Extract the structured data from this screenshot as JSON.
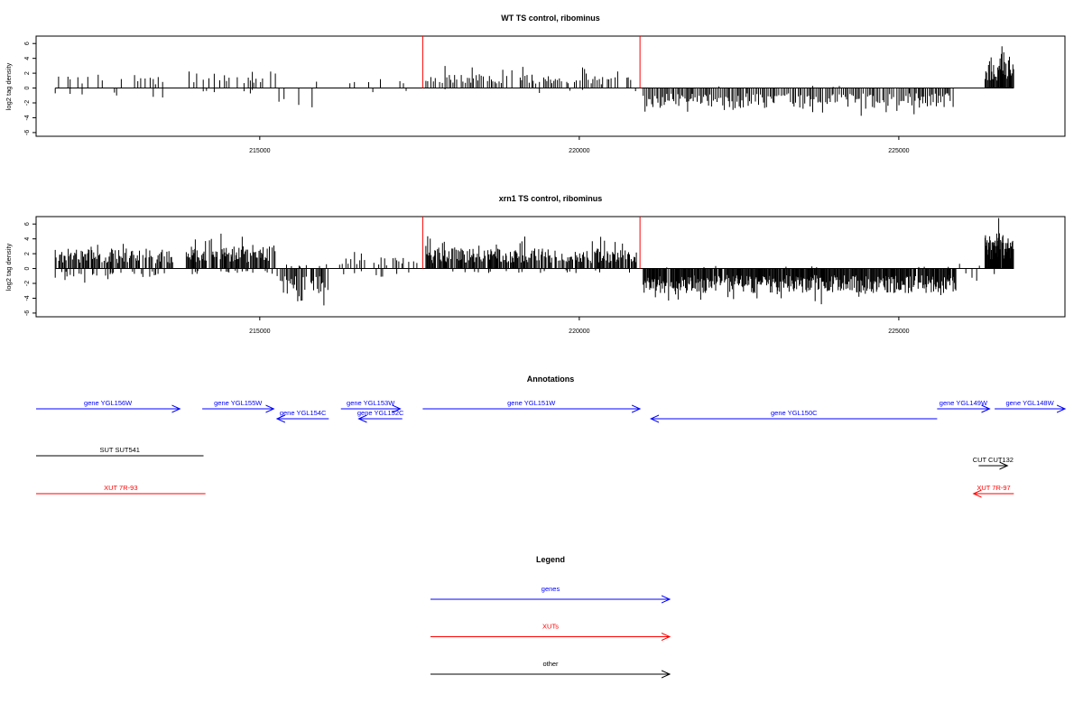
{
  "colors": {
    "axis": "#000000",
    "bars": "#000000",
    "marker": "#ff0000",
    "genes": "#0000ff",
    "xuts": "#ff0000",
    "other": "#000000"
  },
  "chart_data": [
    {
      "type": "bar",
      "title": "WT TS control, ribominus",
      "ylabel": "log2 tag density",
      "xlim": [
        211500,
        227600
      ],
      "ylim": [
        -6.5,
        7
      ],
      "yticks": [
        -6,
        -4,
        -2,
        0,
        2,
        4,
        6
      ],
      "ytick_labels": [
        "-6",
        "-4",
        "-2",
        "0",
        "2",
        "4",
        "6"
      ],
      "xticks": [
        215000,
        220000,
        225000
      ],
      "xtick_labels": [
        "215000",
        "220000",
        "225000"
      ],
      "markers": [
        217550,
        220950
      ],
      "marker_top": 7,
      "grid": false,
      "segments": [
        {
          "start": 211800,
          "end": 213600,
          "step": 50,
          "pos_level": 1.2,
          "pos_var": 1.4,
          "neg_level": 0.9,
          "neg_var": 1.2,
          "pos_prob": 0.45,
          "neg_prob": 0.3
        },
        {
          "start": 213850,
          "end": 215250,
          "step": 38,
          "pos_level": 1.5,
          "pos_var": 1.5,
          "neg_level": 0.6,
          "neg_var": 0.5,
          "pos_prob": 0.65,
          "neg_prob": 0.12
        },
        {
          "start": 215300,
          "end": 215900,
          "step": 60,
          "pos_level": 0.6,
          "pos_var": 0.8,
          "neg_level": 1.8,
          "neg_var": 2.2,
          "pos_prob": 0.25,
          "neg_prob": 0.55
        },
        {
          "start": 216300,
          "end": 217500,
          "step": 55,
          "pos_level": 0.8,
          "pos_var": 1.2,
          "neg_level": 0.6,
          "neg_var": 0.8,
          "pos_prob": 0.35,
          "neg_prob": 0.15
        },
        {
          "start": 217600,
          "end": 220900,
          "step": 32,
          "pos_level": 1.2,
          "pos_var": 1.6,
          "neg_level": 0.4,
          "neg_var": 0.3,
          "pos_prob": 0.7,
          "neg_prob": 0.05
        },
        {
          "start": 221000,
          "end": 225900,
          "step": 24,
          "pos_level": 0.2,
          "pos_var": 0.2,
          "neg_level": 1.8,
          "neg_var": 2.0,
          "pos_prob": 0.02,
          "neg_prob": 0.9
        },
        {
          "start": 226000,
          "end": 226300,
          "step": 60,
          "pos_level": 0.4,
          "pos_var": 0.3,
          "neg_level": 0.8,
          "neg_var": 0.8,
          "pos_prob": 0.2,
          "neg_prob": 0.4
        },
        {
          "start": 226350,
          "end": 226800,
          "step": 12,
          "pos_level": 2.5,
          "pos_var": 3.0,
          "neg_level": 0.4,
          "neg_var": 0.4,
          "pos_prob": 0.95,
          "neg_prob": 0.05
        }
      ]
    },
    {
      "type": "bar",
      "title": "xrn1 TS control, ribominus",
      "ylabel": "log2 tag density",
      "xlim": [
        211500,
        227600
      ],
      "ylim": [
        -6.5,
        7
      ],
      "yticks": [
        -6,
        -4,
        -2,
        0,
        2,
        4,
        6
      ],
      "ytick_labels": [
        "-6",
        "-4",
        "-2",
        "0",
        "2",
        "4",
        "6"
      ],
      "xticks": [
        215000,
        220000,
        225000
      ],
      "xtick_labels": [
        "215000",
        "220000",
        "225000"
      ],
      "markers": [
        217550,
        220950
      ],
      "marker_top": 7,
      "grid": false,
      "segments": [
        {
          "start": 211800,
          "end": 213650,
          "step": 16,
          "pos_level": 1.8,
          "pos_var": 2.2,
          "neg_level": 1.0,
          "neg_var": 1.2,
          "pos_prob": 0.85,
          "neg_prob": 0.35
        },
        {
          "start": 213850,
          "end": 215250,
          "step": 14,
          "pos_level": 2.0,
          "pos_var": 2.5,
          "neg_level": 0.6,
          "neg_var": 0.8,
          "pos_prob": 0.85,
          "neg_prob": 0.2
        },
        {
          "start": 215250,
          "end": 216100,
          "step": 18,
          "pos_level": 0.5,
          "pos_var": 0.6,
          "neg_level": 2.5,
          "neg_var": 2.6,
          "pos_prob": 0.15,
          "neg_prob": 0.85
        },
        {
          "start": 216250,
          "end": 217500,
          "step": 30,
          "pos_level": 1.0,
          "pos_var": 1.2,
          "neg_level": 0.8,
          "neg_var": 1.2,
          "pos_prob": 0.55,
          "neg_prob": 0.25
        },
        {
          "start": 217600,
          "end": 220900,
          "step": 14,
          "pos_level": 1.8,
          "pos_var": 2.2,
          "neg_level": 0.4,
          "neg_var": 0.3,
          "pos_prob": 0.85,
          "neg_prob": 0.08
        },
        {
          "start": 221000,
          "end": 225900,
          "step": 12,
          "pos_level": 0.2,
          "pos_var": 0.2,
          "neg_level": 2.2,
          "neg_var": 2.4,
          "pos_prob": 0.02,
          "neg_prob": 0.95
        },
        {
          "start": 225950,
          "end": 226300,
          "step": 40,
          "pos_level": 0.6,
          "pos_var": 0.8,
          "neg_level": 1.2,
          "neg_var": 1.0,
          "pos_prob": 0.3,
          "neg_prob": 0.5
        },
        {
          "start": 226350,
          "end": 226800,
          "step": 8,
          "pos_level": 3.0,
          "pos_var": 3.2,
          "neg_level": 0.4,
          "neg_var": 0.3,
          "pos_prob": 0.97,
          "neg_prob": 0.05
        }
      ]
    }
  ],
  "annotations": {
    "title": "Annotations",
    "features": [
      {
        "label": "gene YGL156W",
        "kind": "genes",
        "start": 211500,
        "end": 213750,
        "strand": "+",
        "row": 0
      },
      {
        "label": "gene YGL155W",
        "kind": "genes",
        "start": 214100,
        "end": 215220,
        "strand": "+",
        "row": 0
      },
      {
        "label": "gene YGL154C",
        "kind": "genes",
        "start": 215270,
        "end": 216080,
        "strand": "-",
        "row": 1
      },
      {
        "label": "gene YGL153W",
        "kind": "genes",
        "start": 216270,
        "end": 217200,
        "strand": "+",
        "row": 0
      },
      {
        "label": "gene YGL152C",
        "kind": "genes",
        "start": 216550,
        "end": 217230,
        "strand": "-",
        "row": 1
      },
      {
        "label": "gene YGL151W",
        "kind": "genes",
        "start": 217550,
        "end": 220950,
        "strand": "+",
        "row": 0
      },
      {
        "label": "gene YGL150C",
        "kind": "genes",
        "start": 221120,
        "end": 225600,
        "strand": "-",
        "row": 1
      },
      {
        "label": "gene YGL149W",
        "kind": "genes",
        "start": 225600,
        "end": 226420,
        "strand": "+",
        "row": 0
      },
      {
        "label": "gene YGL148W",
        "kind": "genes",
        "start": 226500,
        "end": 227600,
        "strand": "+",
        "row": 0
      },
      {
        "label": "SUT SUT541",
        "kind": "other",
        "start": 211500,
        "end": 214120,
        "strand": "",
        "row": 2
      },
      {
        "label": "CUT CUT132",
        "kind": "other",
        "start": 226250,
        "end": 226700,
        "strand": "+",
        "row": 3
      },
      {
        "label": "XUT 7R-93",
        "kind": "xuts",
        "start": 211500,
        "end": 214150,
        "strand": "",
        "row": 4
      },
      {
        "label": "XUT 7R-97",
        "kind": "xuts",
        "start": 226170,
        "end": 226800,
        "strand": "-",
        "row": 4
      }
    ]
  },
  "legend": {
    "title": "Legend",
    "entries": [
      {
        "label": "genes",
        "kind": "genes"
      },
      {
        "label": "XUTs",
        "kind": "xuts"
      },
      {
        "label": "other",
        "kind": "other"
      }
    ]
  }
}
